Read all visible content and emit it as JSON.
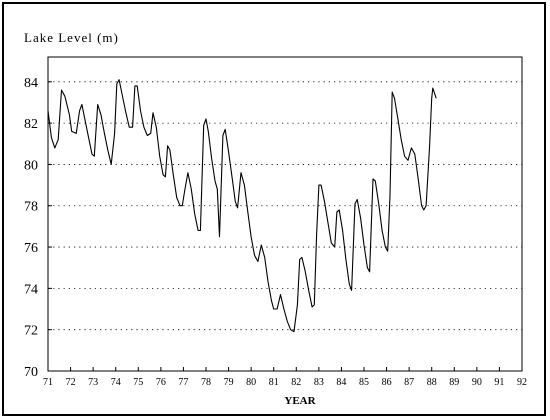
{
  "chart_data": {
    "type": "line",
    "title": "Lake Level (m)",
    "xlabel": "YEAR",
    "ylabel": "",
    "xlim": [
      71,
      92
    ],
    "ylim": [
      70,
      85.2
    ],
    "x_ticks": [
      "71",
      "72",
      "73",
      "74",
      "75",
      "76",
      "77",
      "78",
      "79",
      "80",
      "81",
      "82",
      "83",
      "84",
      "85",
      "86",
      "87",
      "88",
      "89",
      "90",
      "91",
      "92"
    ],
    "y_ticks": [
      "70",
      "72",
      "74",
      "76",
      "78",
      "80",
      "82",
      "84"
    ],
    "grid": "horizontal dotted",
    "series": [
      {
        "values": [
          [
            71.0,
            82.6
          ],
          [
            71.15,
            81.3
          ],
          [
            71.3,
            80.8
          ],
          [
            71.45,
            81.2
          ],
          [
            71.6,
            83.6
          ],
          [
            71.75,
            83.3
          ],
          [
            71.95,
            82.4
          ],
          [
            72.05,
            81.6
          ],
          [
            72.25,
            81.5
          ],
          [
            72.4,
            82.6
          ],
          [
            72.5,
            82.9
          ],
          [
            72.65,
            82.1
          ],
          [
            72.8,
            81.3
          ],
          [
            72.95,
            80.5
          ],
          [
            73.05,
            80.4
          ],
          [
            73.2,
            82.9
          ],
          [
            73.35,
            82.4
          ],
          [
            73.5,
            81.5
          ],
          [
            73.65,
            80.7
          ],
          [
            73.8,
            80.0
          ],
          [
            73.95,
            81.5
          ],
          [
            74.05,
            83.9
          ],
          [
            74.15,
            84.1
          ],
          [
            74.3,
            83.3
          ],
          [
            74.45,
            82.5
          ],
          [
            74.6,
            81.8
          ],
          [
            74.75,
            81.8
          ],
          [
            74.85,
            83.8
          ],
          [
            74.95,
            83.8
          ],
          [
            75.1,
            82.6
          ],
          [
            75.25,
            81.8
          ],
          [
            75.4,
            81.4
          ],
          [
            75.55,
            81.5
          ],
          [
            75.65,
            82.5
          ],
          [
            75.8,
            81.8
          ],
          [
            75.95,
            80.4
          ],
          [
            76.1,
            79.5
          ],
          [
            76.2,
            79.4
          ],
          [
            76.3,
            80.9
          ],
          [
            76.4,
            80.7
          ],
          [
            76.55,
            79.5
          ],
          [
            76.7,
            78.4
          ],
          [
            76.85,
            78.0
          ],
          [
            76.95,
            78.0
          ],
          [
            77.05,
            78.7
          ],
          [
            77.2,
            79.6
          ],
          [
            77.35,
            78.8
          ],
          [
            77.5,
            77.6
          ],
          [
            77.65,
            76.8
          ],
          [
            77.75,
            76.8
          ],
          [
            77.9,
            81.9
          ],
          [
            78.0,
            82.2
          ],
          [
            78.1,
            81.6
          ],
          [
            78.25,
            80.3
          ],
          [
            78.4,
            79.2
          ],
          [
            78.5,
            78.8
          ],
          [
            78.6,
            76.5
          ],
          [
            78.75,
            81.4
          ],
          [
            78.85,
            81.7
          ],
          [
            79.0,
            80.6
          ],
          [
            79.15,
            79.4
          ],
          [
            79.3,
            78.2
          ],
          [
            79.4,
            77.9
          ],
          [
            79.55,
            79.6
          ],
          [
            79.7,
            79.0
          ],
          [
            79.85,
            77.7
          ],
          [
            80.0,
            76.5
          ],
          [
            80.15,
            75.6
          ],
          [
            80.3,
            75.3
          ],
          [
            80.45,
            76.1
          ],
          [
            80.6,
            75.5
          ],
          [
            80.75,
            74.3
          ],
          [
            80.9,
            73.4
          ],
          [
            81.0,
            73.0
          ],
          [
            81.15,
            73.0
          ],
          [
            81.3,
            73.7
          ],
          [
            81.45,
            73.0
          ],
          [
            81.6,
            72.4
          ],
          [
            81.75,
            72.0
          ],
          [
            81.9,
            71.9
          ],
          [
            82.05,
            73.2
          ],
          [
            82.15,
            75.4
          ],
          [
            82.25,
            75.5
          ],
          [
            82.4,
            74.8
          ],
          [
            82.55,
            73.9
          ],
          [
            82.7,
            73.1
          ],
          [
            82.8,
            73.2
          ],
          [
            82.9,
            76.6
          ],
          [
            83.0,
            79.0
          ],
          [
            83.1,
            79.0
          ],
          [
            83.25,
            78.2
          ],
          [
            83.4,
            77.2
          ],
          [
            83.55,
            76.2
          ],
          [
            83.7,
            76.0
          ],
          [
            83.8,
            77.7
          ],
          [
            83.9,
            77.8
          ],
          [
            84.05,
            76.8
          ],
          [
            84.2,
            75.4
          ],
          [
            84.35,
            74.2
          ],
          [
            84.45,
            73.9
          ],
          [
            84.6,
            78.1
          ],
          [
            84.7,
            78.3
          ],
          [
            84.85,
            77.4
          ],
          [
            85.0,
            76.1
          ],
          [
            85.15,
            75.0
          ],
          [
            85.25,
            74.8
          ],
          [
            85.4,
            79.3
          ],
          [
            85.5,
            79.2
          ],
          [
            85.65,
            78.1
          ],
          [
            85.8,
            76.8
          ],
          [
            85.95,
            76.0
          ],
          [
            86.05,
            75.8
          ],
          [
            86.15,
            78.5
          ],
          [
            86.25,
            83.5
          ],
          [
            86.35,
            83.2
          ],
          [
            86.5,
            82.2
          ],
          [
            86.65,
            81.2
          ],
          [
            86.8,
            80.4
          ],
          [
            86.95,
            80.2
          ],
          [
            87.1,
            80.8
          ],
          [
            87.25,
            80.5
          ],
          [
            87.4,
            79.3
          ],
          [
            87.55,
            78.0
          ],
          [
            87.65,
            77.8
          ],
          [
            87.75,
            78.0
          ],
          [
            87.9,
            80.8
          ],
          [
            88.0,
            83.2
          ],
          [
            88.05,
            83.7
          ],
          [
            88.2,
            83.2
          ]
        ]
      }
    ]
  }
}
